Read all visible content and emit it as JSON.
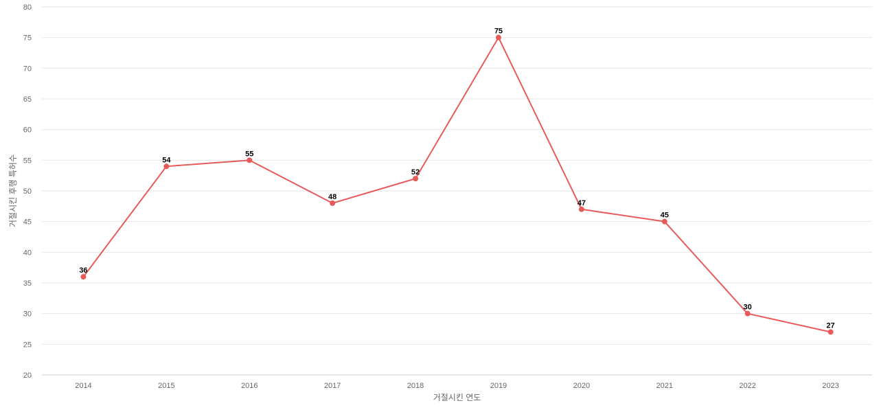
{
  "chart_data": {
    "type": "line",
    "categories": [
      "2014",
      "2015",
      "2016",
      "2017",
      "2018",
      "2019",
      "2020",
      "2021",
      "2022",
      "2023"
    ],
    "series": [
      {
        "values": [
          36,
          54,
          55,
          48,
          52,
          75,
          47,
          45,
          30,
          27
        ],
        "color": "#e85a5a"
      }
    ],
    "data_labels": [
      "36",
      "54",
      "55",
      "48",
      "52",
      "75",
      "47",
      "45",
      "30",
      "27"
    ],
    "xlabel": "거절시킨 연도",
    "ylabel": "거절시킨 후행 특허수",
    "ylim": [
      20,
      80
    ],
    "yticks": [
      "20",
      "25",
      "30",
      "35",
      "40",
      "45",
      "50",
      "55",
      "60",
      "65",
      "70",
      "75",
      "80"
    ],
    "grid": true,
    "grid_color": "#e6e6e6",
    "legend": "none"
  }
}
